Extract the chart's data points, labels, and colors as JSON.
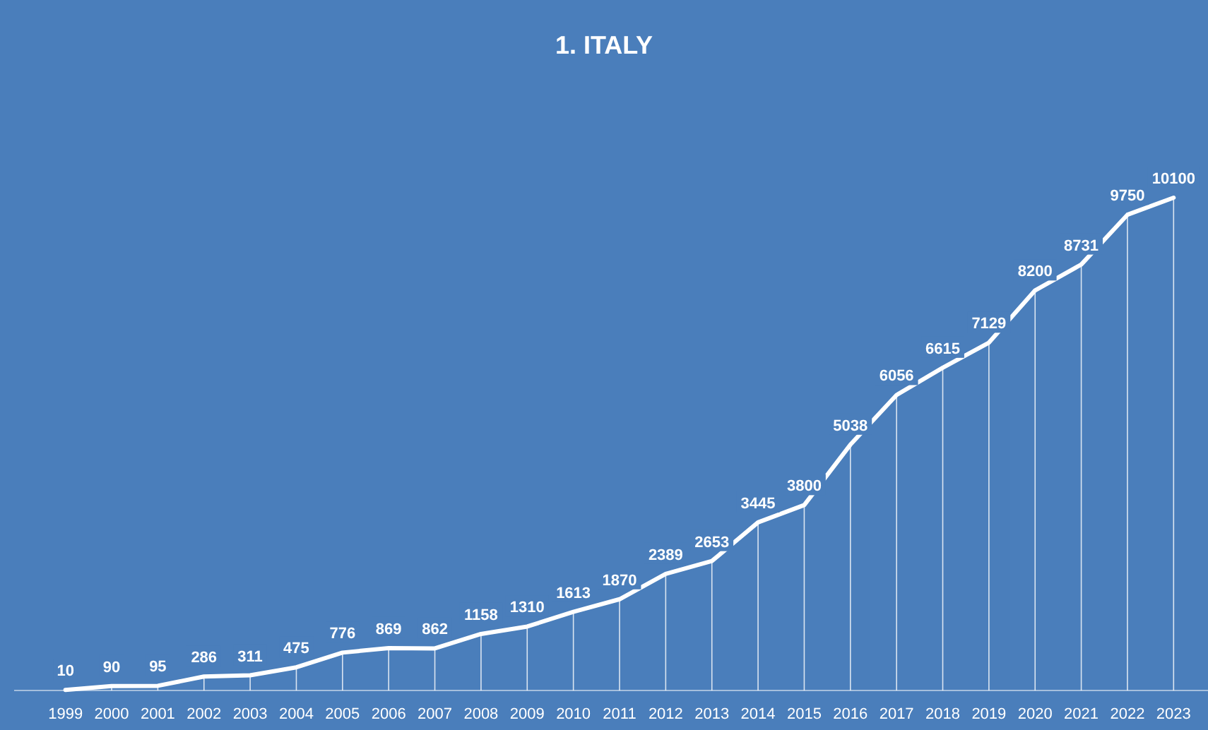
{
  "chart_data": {
    "type": "line",
    "title": "1. ITALY",
    "categories": [
      "1999",
      "2000",
      "2001",
      "2002",
      "2003",
      "2004",
      "2005",
      "2006",
      "2007",
      "2008",
      "2009",
      "2010",
      "2011",
      "2012",
      "2013",
      "2014",
      "2015",
      "2016",
      "2017",
      "2018",
      "2019",
      "2020",
      "2021",
      "2022",
      "2023"
    ],
    "series": [
      {
        "color": "#ffffff",
        "values": [
          10,
          90,
          95,
          286,
          311,
          475,
          776,
          869,
          862,
          1158,
          1310,
          1613,
          1870,
          2389,
          2653,
          3445,
          3800,
          5038,
          6056,
          6615,
          7129,
          8200,
          8731,
          9750,
          10100
        ]
      }
    ],
    "data_labels": true,
    "grid": "x",
    "marker": "none",
    "line_style": "solid"
  }
}
